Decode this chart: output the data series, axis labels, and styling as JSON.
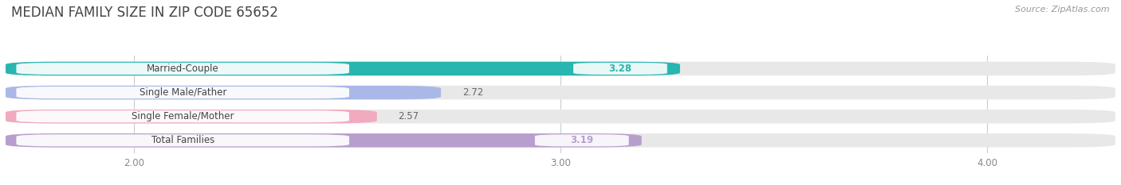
{
  "title": "MEDIAN FAMILY SIZE IN ZIP CODE 65652",
  "source": "Source: ZipAtlas.com",
  "categories": [
    "Married-Couple",
    "Single Male/Father",
    "Single Female/Mother",
    "Total Families"
  ],
  "values": [
    3.28,
    2.72,
    2.57,
    3.19
  ],
  "bar_colors": [
    "#29b5b0",
    "#aab8e8",
    "#f2aabf",
    "#b89ece"
  ],
  "bar_bg_color": "#e8e8e8",
  "xlim": [
    1.7,
    4.3
  ],
  "xticks": [
    2.0,
    3.0,
    4.0
  ],
  "xtick_labels": [
    "2.00",
    "3.00",
    "4.00"
  ],
  "background_color": "#ffffff",
  "bar_height": 0.58,
  "title_fontsize": 12,
  "label_fontsize": 8.5,
  "value_fontsize": 8.5,
  "source_fontsize": 8
}
